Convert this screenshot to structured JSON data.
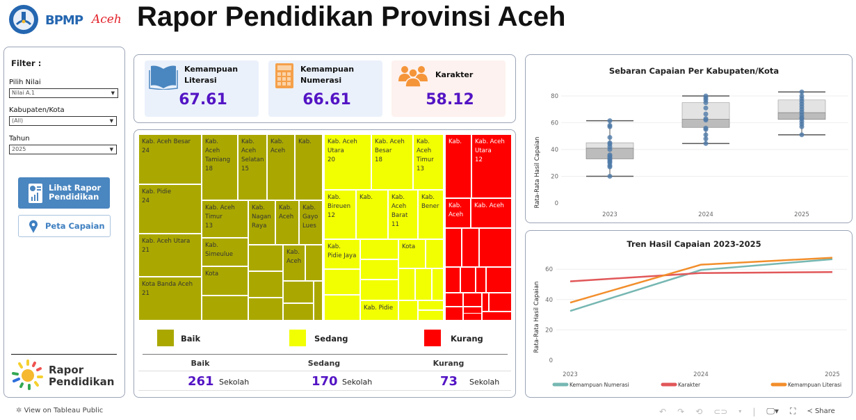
{
  "header": {
    "logo_text": "BPMP",
    "logo_script": "Aceh",
    "title": "Rapor Pendidikan Provinsi Aceh"
  },
  "filter": {
    "heading": "Filter :",
    "pilih_nilai": {
      "label": "Pilih Nilai",
      "value": "Nilai A.1"
    },
    "kabupaten": {
      "label": "Kabupaten/Kota",
      "value": "(All)"
    },
    "tahun": {
      "label": "Tahun",
      "value": "2025"
    },
    "btn_rapor": "Lihat Rapor Pendidikan",
    "btn_peta": "Peta Capaian",
    "brand": {
      "line1": "Rapor",
      "line2": "Pendidikan"
    }
  },
  "kpis": [
    {
      "label1": "Kemampuan",
      "label2": "Literasi",
      "value": "67.61",
      "icon": "book-icon"
    },
    {
      "label1": "Kemampuan",
      "label2": "Numerasi",
      "value": "66.61",
      "icon": "calculator-icon"
    },
    {
      "label1": "Karakter",
      "label2": "",
      "value": "58.12",
      "icon": "people-icon"
    }
  ],
  "colors": {
    "baik": "#aaa800",
    "sedang": "#f2ff00",
    "kurang": "#ff0000",
    "accent": "#5314c4"
  },
  "treemap": {
    "cells": [
      {
        "name": "Kab. Aceh Besar",
        "count": "24",
        "cat": "baik"
      },
      {
        "name": "Kab. Pidie",
        "count": "24",
        "cat": "baik"
      },
      {
        "name": "Kab. Aceh Utara",
        "count": "21",
        "cat": "baik"
      },
      {
        "name": "Kota Banda Aceh",
        "count": "21",
        "cat": "baik"
      },
      {
        "name": "Kab. Aceh Tamiang",
        "count": "18",
        "cat": "baik"
      },
      {
        "name": "Kab. Aceh Selatan",
        "count": "15",
        "cat": "baik"
      },
      {
        "name": "Kab. Aceh",
        "count": "",
        "cat": "baik"
      },
      {
        "name": "Kab.",
        "count": "",
        "cat": "baik"
      },
      {
        "name": "Kab. Aceh Timur",
        "count": "13",
        "cat": "baik"
      },
      {
        "name": "Kab. Nagan Raya",
        "count": "",
        "cat": "baik"
      },
      {
        "name": "Kab. Aceh",
        "count": "",
        "cat": "baik"
      },
      {
        "name": "Kab. Gayo Lues",
        "count": "",
        "cat": "baik"
      },
      {
        "name": "Kab. Simeulue",
        "count": "",
        "cat": "baik"
      },
      {
        "name": "Kota",
        "count": "",
        "cat": "baik"
      },
      {
        "name": "Kab. Aceh",
        "count": "",
        "cat": "baik"
      },
      {
        "name": "Kab. Aceh Utara",
        "count": "20",
        "cat": "sedang"
      },
      {
        "name": "Kab. Aceh Besar",
        "count": "18",
        "cat": "sedang"
      },
      {
        "name": "Kab. Aceh Timur",
        "count": "13",
        "cat": "sedang"
      },
      {
        "name": "Kab. Bireuen",
        "count": "12",
        "cat": "sedang"
      },
      {
        "name": "Kab.",
        "count": "",
        "cat": "sedang"
      },
      {
        "name": "Kab. Aceh Barat",
        "count": "11",
        "cat": "sedang"
      },
      {
        "name": "Kab. Bener",
        "count": "",
        "cat": "sedang"
      },
      {
        "name": "Kab. Pidie Jaya",
        "count": "",
        "cat": "sedang"
      },
      {
        "name": "Kota",
        "count": "",
        "cat": "sedang"
      },
      {
        "name": "Kab. Pidie",
        "count": "",
        "cat": "sedang"
      },
      {
        "name": "Kab.",
        "count": "",
        "cat": "kurang"
      },
      {
        "name": "Kab. Aceh Utara",
        "count": "12",
        "cat": "kurang"
      },
      {
        "name": "Kab. Aceh",
        "count": "",
        "cat": "kurang"
      },
      {
        "name": "Kab. Aceh",
        "count": "",
        "cat": "kurang"
      }
    ]
  },
  "legend": {
    "baik": "Baik",
    "sedang": "Sedang",
    "kurang": "Kurang"
  },
  "summary": [
    {
      "label": "Baik",
      "count": "261",
      "unit": "Sekolah"
    },
    {
      "label": "Sedang",
      "count": "170",
      "unit": "Sekolah"
    },
    {
      "label": "Kurang",
      "count": "73",
      "unit": "Sekolah"
    }
  ],
  "chart_data": [
    {
      "type": "boxplot",
      "title": "Sebaran Capaian Per Kabupaten/Kota",
      "ylabel": "Rata-Rata Hasil Capaian",
      "categories": [
        "2023",
        "2024",
        "2025"
      ],
      "yticks": [
        "0",
        "20",
        "40",
        "60",
        "80"
      ],
      "ylim": [
        0,
        88
      ],
      "grid": true,
      "boxes": [
        {
          "year": "2023",
          "min": 20,
          "q1": 33,
          "median": 41,
          "q3": 45,
          "max": 61.5,
          "points": [
            20,
            27,
            28,
            30,
            31,
            32,
            33,
            34,
            35,
            36,
            40,
            42,
            44,
            45,
            49,
            57,
            58,
            61.5
          ]
        },
        {
          "year": "2024",
          "min": 44.5,
          "q1": 56.5,
          "median": 62.5,
          "q3": 75,
          "max": 80,
          "points": [
            44.5,
            48,
            51,
            55,
            56,
            62,
            63,
            66.5,
            71,
            75,
            77,
            78.5,
            80
          ]
        },
        {
          "year": "2025",
          "min": 51,
          "q1": 62.5,
          "median": 67.5,
          "q3": 77,
          "max": 83,
          "points": [
            51,
            57,
            59,
            61,
            63,
            64,
            66,
            68,
            70,
            72,
            74,
            76,
            78,
            80,
            83
          ]
        }
      ]
    },
    {
      "type": "line",
      "title": "Tren Hasil Capaian 2023-2025",
      "ylabel": "Rata-Rata Hasil Capaian",
      "x": [
        "2023",
        "2024",
        "2025"
      ],
      "yticks": [
        "0",
        "20",
        "40",
        "60"
      ],
      "ylim": [
        0,
        72
      ],
      "grid": true,
      "legend": "bottom",
      "series": [
        {
          "name": "Kemampuan Numerasi",
          "color": "#76b7b2",
          "values": [
            32.5,
            59.5,
            66.61
          ]
        },
        {
          "name": "Karakter",
          "color": "#e15759",
          "values": [
            52,
            57.5,
            58.12
          ]
        },
        {
          "name": "Kemampuan Literasi",
          "color": "#f28e2b",
          "values": [
            38,
            63,
            67.61
          ]
        }
      ]
    }
  ],
  "footer": {
    "tableau": "View on Tableau Public",
    "share": "Share"
  }
}
